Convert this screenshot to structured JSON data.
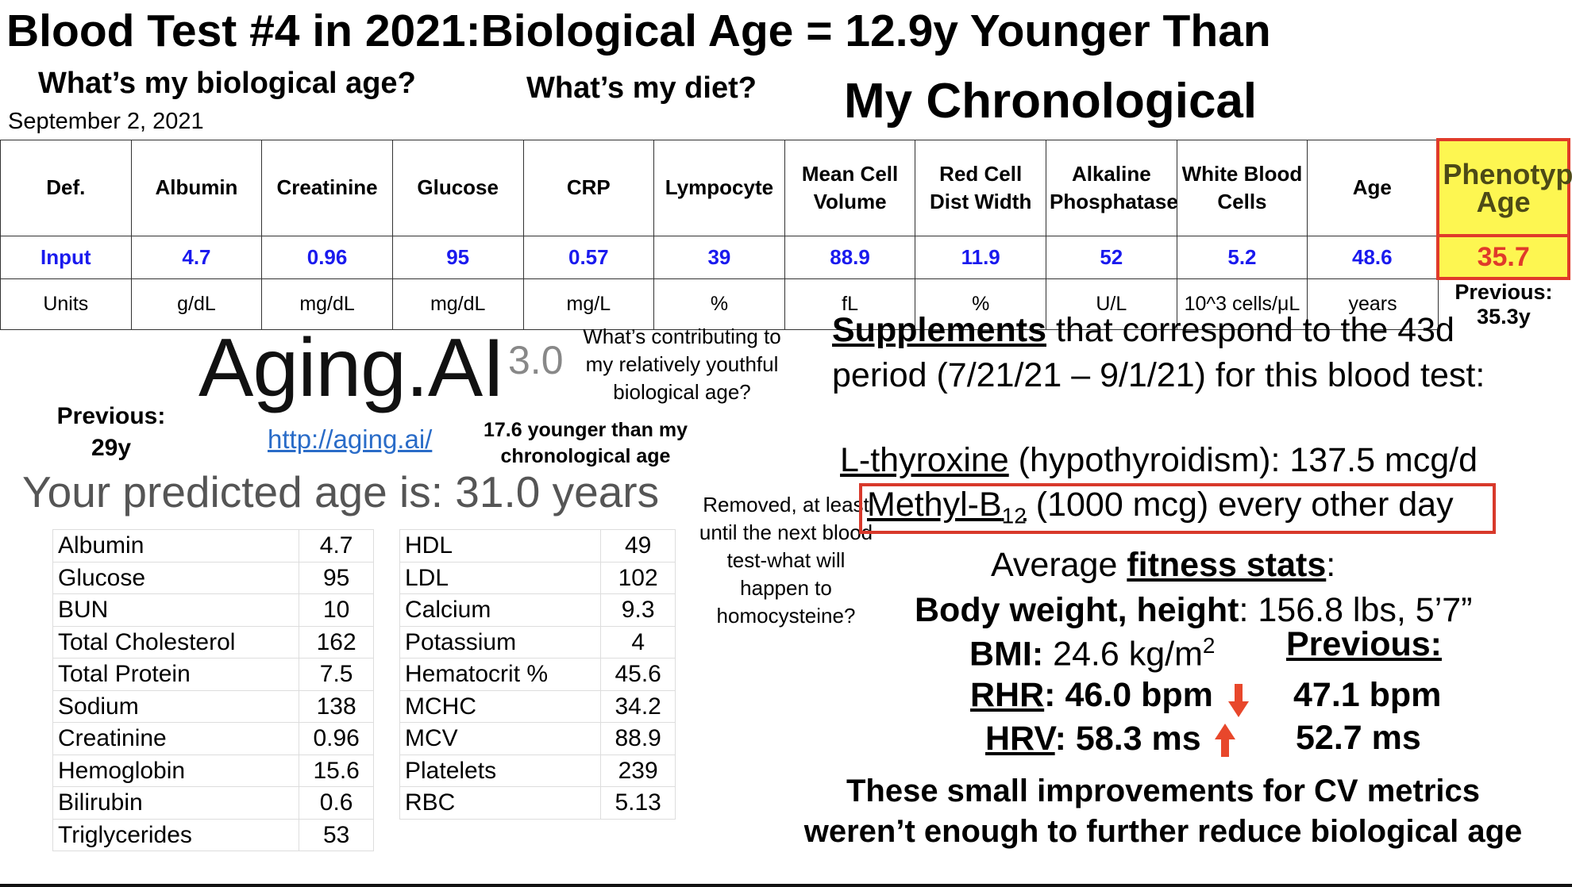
{
  "header": {
    "title": "Blood Test #4 in 2021:Biological Age = 12.9y Younger Than",
    "title_continued": "My Chronological",
    "question_age": "What’s my biological age?",
    "question_diet": "What’s my diet?",
    "date": "September 2, 2021"
  },
  "phenotype_table": {
    "headers": [
      "Def.",
      "Albumin",
      "Creatinine",
      "Glucose",
      "CRP",
      "Lympocyte",
      "Mean Cell Volume",
      "Red Cell Dist Width",
      "Alkaline Phosphatase",
      "White Blood Cells",
      "Age",
      "Phenotypic Age"
    ],
    "input": [
      "Input",
      "4.7",
      "0.96",
      "95",
      "0.57",
      "39",
      "88.9",
      "11.9",
      "52",
      "5.2",
      "48.6",
      "35.7"
    ],
    "units": [
      "Units",
      "g/dL",
      "mg/dL",
      "mg/dL",
      "mg/L",
      "%",
      "fL",
      "%",
      "U/L",
      "10^3 cells/μL",
      "years"
    ],
    "previous": "Previous: 35.3y"
  },
  "aging_ai": {
    "logo": "Aging.AI",
    "version": "3.0",
    "url": "http://aging.ai/",
    "previous_label": "Previous:",
    "previous_value": "29y",
    "question": "What’s contributing to my relatively youthful biological age?",
    "note": "17.6 younger than my chronological age",
    "prediction": "Your predicted age is: 31.0 years"
  },
  "biomarkers": {
    "left": [
      [
        "Albumin",
        "4.7"
      ],
      [
        "Glucose",
        "95"
      ],
      [
        "BUN",
        "10"
      ],
      [
        "Total Cholesterol",
        "162"
      ],
      [
        "Total Protein",
        "7.5"
      ],
      [
        "Sodium",
        "138"
      ],
      [
        "Creatinine",
        "0.96"
      ],
      [
        "Hemoglobin",
        "15.6"
      ],
      [
        "Bilirubin",
        "0.6"
      ],
      [
        "Triglycerides",
        "53"
      ]
    ],
    "right": [
      [
        "HDL",
        "49"
      ],
      [
        "LDL",
        "102"
      ],
      [
        "Calcium",
        "9.3"
      ],
      [
        "Potassium",
        "4"
      ],
      [
        "Hematocrit %",
        "45.6"
      ],
      [
        "MCHC",
        "34.2"
      ],
      [
        "MCV",
        "88.9"
      ],
      [
        "Platelets",
        "239"
      ],
      [
        "RBC",
        "5.13"
      ]
    ]
  },
  "removed_note": "Removed, at least until the next blood test-what will happen to homocysteine?",
  "supplements": {
    "heading": "Supplements",
    "heading_rest": " that correspond to the 43d",
    "heading_line2": "period (7/21/21 – 9/1/21) for this blood test:",
    "item1_name": "L-thyroxine",
    "item1_rest": " (hypothyroidism): 137.5 mcg/d",
    "item2_name": "Methyl-B",
    "item2_sub": "12",
    "item2_rest": " (1000 mcg) every other day"
  },
  "fitness": {
    "intro": "Average ",
    "heading": "fitness stats",
    "colon": ":",
    "body_label": "Body weight, height",
    "body_value": ": 156.8 lbs, 5’7”",
    "bmi_label": "BMI:",
    "bmi_value": " 24.6 kg/m",
    "bmi_sup": "2",
    "rhr_label": "RHR",
    "rhr_value": ": 46.0 bpm",
    "hrv_label": "HRV",
    "hrv_value": ": 58.3 ms",
    "previous_label": "Previous:",
    "previous_rhr": "47.1 bpm",
    "previous_hrv": "52.7 ms"
  },
  "conclusion": [
    "These small improvements for CV metrics",
    "weren’t enough to further reduce biological age"
  ]
}
